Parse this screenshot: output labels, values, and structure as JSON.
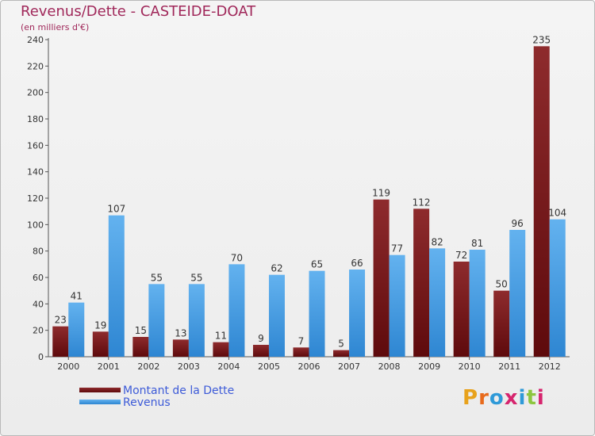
{
  "header": {
    "title": "Revenus/Dette - CASTEIDE-DOAT",
    "subtitle": "(en milliers d'€)"
  },
  "logo": {
    "text": "Proxiti"
  },
  "colors": {
    "title": "#a0285a",
    "dette_top": "#8e2b2d",
    "dette_bottom": "#5e0a0c",
    "revenus_top": "#63b2ef",
    "revenus_bottom": "#2e86d2",
    "legend_text": "#3d5bd8"
  },
  "chart_data": {
    "type": "bar",
    "categories": [
      "2000",
      "2001",
      "2002",
      "2003",
      "2004",
      "2005",
      "2006",
      "2007",
      "2008",
      "2009",
      "2010",
      "2011",
      "2012"
    ],
    "series": [
      {
        "name": "Montant de la Dette",
        "values": [
          23,
          19,
          15,
          13,
          11,
          9,
          7,
          5,
          119,
          112,
          72,
          50,
          235
        ]
      },
      {
        "name": "Revenus",
        "values": [
          41,
          107,
          55,
          55,
          70,
          62,
          65,
          66,
          77,
          82,
          81,
          96,
          104
        ]
      }
    ],
    "y_ticks": [
      "0",
      "20",
      "40",
      "60",
      "80",
      "100",
      "120",
      "140",
      "160",
      "180",
      "200",
      "220",
      "240"
    ],
    "ylim": [
      0,
      240
    ],
    "grid": false,
    "legend_position": "bottom-left"
  }
}
